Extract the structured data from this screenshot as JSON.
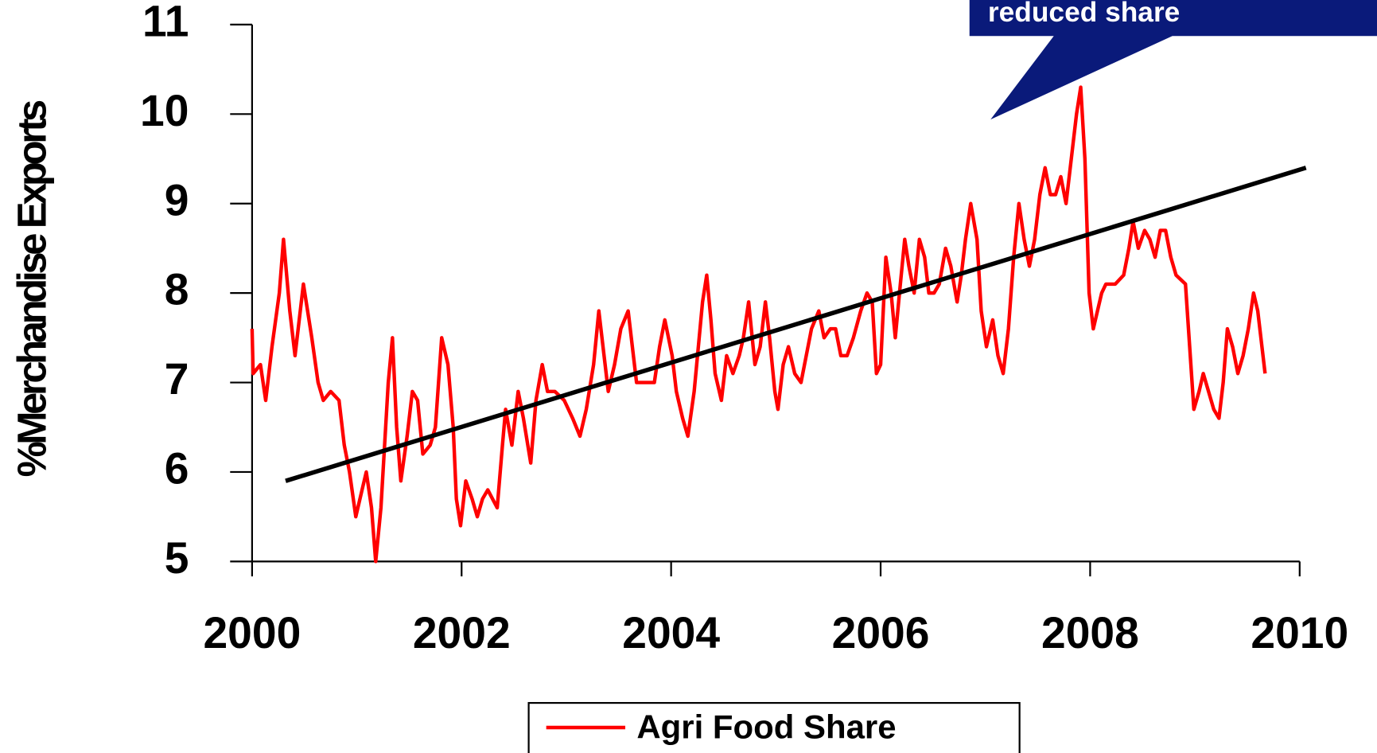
{
  "chart_data": {
    "type": "line",
    "y_label": "%Merchandise Exports",
    "xlim": [
      2000,
      2010
    ],
    "xticks": [
      2000,
      2002,
      2004,
      2006,
      2008,
      2010
    ],
    "ylim": [
      5,
      11
    ],
    "yticks": [
      5,
      6,
      7,
      8,
      9,
      10,
      11
    ],
    "grid": false,
    "legend": "bottom",
    "annotations": [
      {
        "text": "reduced share",
        "color": "#0a1a7a"
      }
    ],
    "series": [
      {
        "name": "Agri Food Share",
        "color": "#ff0000",
        "x": [
          2000.0,
          2000.01,
          2000.08,
          2000.13,
          2000.19,
          2000.26,
          2000.3,
          2000.36,
          2000.41,
          2000.49,
          2000.57,
          2000.63,
          2000.68,
          2000.75,
          2000.83,
          2000.88,
          2000.93,
          2000.99,
          2001.05,
          2001.09,
          2001.14,
          2001.18,
          2001.23,
          2001.27,
          2001.3,
          2001.34,
          2001.38,
          2001.42,
          2001.48,
          2001.53,
          2001.58,
          2001.63,
          2001.7,
          2001.75,
          2001.81,
          2001.87,
          2001.92,
          2001.95,
          2001.99,
          2002.04,
          2002.1,
          2002.15,
          2002.2,
          2002.25,
          2002.34,
          2002.39,
          2002.42,
          2002.48,
          2002.54,
          2002.59,
          2002.66,
          2002.71,
          2002.77,
          2002.82,
          2002.89,
          2002.98,
          2003.06,
          2003.13,
          2003.19,
          2003.26,
          2003.31,
          2003.35,
          2003.4,
          2003.46,
          2003.52,
          2003.59,
          2003.63,
          2003.67,
          2003.74,
          2003.84,
          2003.89,
          2003.94,
          2004.01,
          2004.05,
          2004.11,
          2004.16,
          2004.22,
          2004.26,
          2004.3,
          2004.34,
          2004.38,
          2004.42,
          2004.48,
          2004.53,
          2004.59,
          2004.65,
          2004.69,
          2004.74,
          2004.8,
          2004.85,
          2004.9,
          2004.94,
          2004.99,
          2005.02,
          2005.07,
          2005.12,
          2005.18,
          2005.24,
          2005.29,
          2005.34,
          2005.41,
          2005.46,
          2005.52,
          2005.57,
          2005.62,
          2005.68,
          2005.74,
          2005.81,
          2005.87,
          2005.92,
          2005.96,
          2006.0,
          2006.05,
          2006.1,
          2006.14,
          2006.18,
          2006.23,
          2006.27,
          2006.32,
          2006.37,
          2006.42,
          2006.46,
          2006.51,
          2006.56,
          2006.62,
          2006.67,
          2006.73,
          2006.77,
          2006.81,
          2006.86,
          2006.92,
          2006.96,
          2007.01,
          2007.07,
          2007.12,
          2007.17,
          2007.22,
          2007.27,
          2007.32,
          2007.37,
          2007.42,
          2007.47,
          2007.52,
          2007.57,
          2007.62,
          2007.67,
          2007.72,
          2007.77,
          2007.82,
          2007.87,
          2007.91,
          2007.95,
          2007.99,
          2008.03,
          2008.07,
          2008.11,
          2008.15,
          2008.24,
          2008.32,
          2008.37,
          2008.41,
          2008.46,
          2008.52,
          2008.57,
          2008.62,
          2008.67,
          2008.72,
          2008.77,
          2008.82,
          2008.91,
          2008.95,
          2008.99,
          2009.04,
          2009.08,
          2009.13,
          2009.18,
          2009.23,
          2009.27,
          2009.31,
          2009.36,
          2009.41,
          2009.46,
          2009.51,
          2009.56,
          2009.6,
          2009.64,
          2009.67
        ],
        "values": [
          7.6,
          7.1,
          7.2,
          6.8,
          7.4,
          8.0,
          8.6,
          7.8,
          7.3,
          8.1,
          7.5,
          7.0,
          6.8,
          6.9,
          6.8,
          6.3,
          6.0,
          5.5,
          5.8,
          6.0,
          5.6,
          5.0,
          5.6,
          6.4,
          7.0,
          7.5,
          6.5,
          5.9,
          6.4,
          6.9,
          6.8,
          6.2,
          6.3,
          6.5,
          7.5,
          7.2,
          6.5,
          5.7,
          5.4,
          5.9,
          5.7,
          5.5,
          5.7,
          5.8,
          5.6,
          6.3,
          6.7,
          6.3,
          6.9,
          6.6,
          6.1,
          6.8,
          7.2,
          6.9,
          6.9,
          6.8,
          6.6,
          6.4,
          6.7,
          7.2,
          7.8,
          7.4,
          6.9,
          7.2,
          7.6,
          7.8,
          7.4,
          7.0,
          7.0,
          7.0,
          7.4,
          7.7,
          7.3,
          6.9,
          6.6,
          6.4,
          6.9,
          7.4,
          7.9,
          8.2,
          7.7,
          7.1,
          6.8,
          7.3,
          7.1,
          7.3,
          7.5,
          7.9,
          7.2,
          7.4,
          7.9,
          7.5,
          6.9,
          6.7,
          7.2,
          7.4,
          7.1,
          7.0,
          7.3,
          7.6,
          7.8,
          7.5,
          7.6,
          7.6,
          7.3,
          7.3,
          7.5,
          7.8,
          8.0,
          7.9,
          7.1,
          7.2,
          8.4,
          8.0,
          7.5,
          8.0,
          8.6,
          8.3,
          8.0,
          8.6,
          8.4,
          8.0,
          8.0,
          8.1,
          8.5,
          8.3,
          7.9,
          8.2,
          8.6,
          9.0,
          8.6,
          7.8,
          7.4,
          7.7,
          7.3,
          7.1,
          7.6,
          8.4,
          9.0,
          8.6,
          8.3,
          8.6,
          9.1,
          9.4,
          9.1,
          9.1,
          9.3,
          9.0,
          9.5,
          10.0,
          10.3,
          9.5,
          8.0,
          7.6,
          7.8,
          8.0,
          8.1,
          8.1,
          8.2,
          8.5,
          8.8,
          8.5,
          8.7,
          8.6,
          8.4,
          8.7,
          8.7,
          8.4,
          8.2,
          8.1,
          7.4,
          6.7,
          6.9,
          7.1,
          6.9,
          6.7,
          6.6,
          7.0,
          7.6,
          7.4,
          7.1,
          7.3,
          7.6,
          8.0,
          7.8,
          7.4,
          7.1
        ]
      },
      {
        "color": "#000000",
        "x": [
          2000.32,
          2010.06
        ],
        "values": [
          5.9,
          9.4
        ]
      }
    ]
  }
}
